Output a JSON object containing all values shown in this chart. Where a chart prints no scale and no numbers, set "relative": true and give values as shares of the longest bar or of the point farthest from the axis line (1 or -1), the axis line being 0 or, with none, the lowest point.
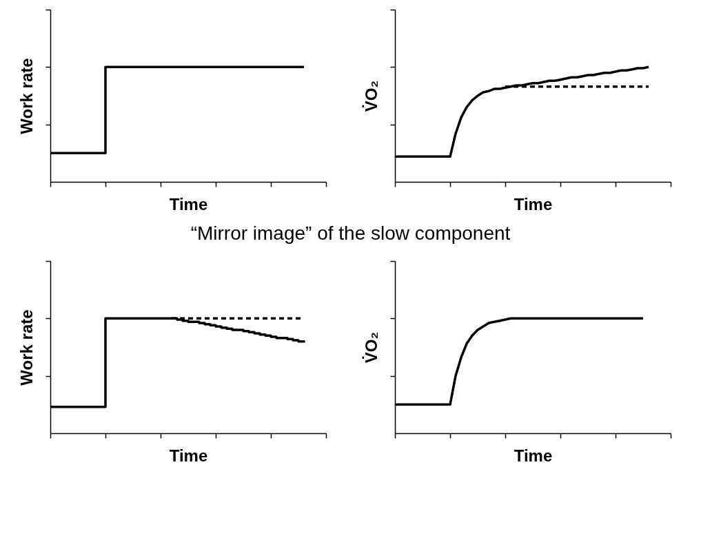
{
  "chart_data": [
    {
      "type": "step",
      "relative": true,
      "xlabel": "Time",
      "ylabel": "Work rate",
      "categories": [
        null,
        null,
        null,
        null,
        null,
        null,
        null,
        null,
        null,
        null,
        null,
        null,
        null,
        null,
        null,
        null,
        null,
        null,
        null,
        null,
        null,
        null,
        null,
        null,
        null,
        null,
        null,
        null,
        null,
        null,
        null,
        null,
        null,
        null,
        null,
        null,
        null,
        null,
        null,
        null,
        null,
        null,
        null,
        null,
        null,
        null,
        null,
        null,
        null,
        null,
        null
      ],
      "series": [
        {
          "color": "#000000",
          "values": [
            0.25,
            0.25,
            0.25,
            0.25,
            0.25,
            0.25,
            0.25,
            0.25,
            0.25,
            0.25,
            1,
            1,
            1,
            1,
            1,
            1,
            1,
            1,
            1,
            1,
            1,
            1,
            1,
            1,
            1,
            1,
            1,
            1,
            1,
            1,
            1,
            1,
            1,
            1,
            1,
            1,
            1,
            1,
            1,
            1,
            1,
            1,
            1,
            1,
            1,
            1,
            1,
            null,
            null,
            null,
            null
          ]
        }
      ]
    },
    {
      "type": "line",
      "relative": true,
      "xlabel": "Time",
      "ylabel": "V̇O₂",
      "categories": [
        null,
        null,
        null,
        null,
        null,
        null,
        null,
        null,
        null,
        null,
        null,
        null,
        null,
        null,
        null,
        null,
        null,
        null,
        null,
        null,
        null,
        null,
        null,
        null,
        null,
        null,
        null,
        null,
        null,
        null,
        null,
        null,
        null,
        null,
        null,
        null,
        null,
        null,
        null,
        null,
        null,
        null,
        null,
        null,
        null,
        null,
        null,
        null,
        null,
        null,
        null
      ],
      "series": [
        {
          "color": "#000000",
          "values": [
            0.22,
            0.22,
            0.22,
            0.22,
            0.22,
            0.22,
            0.22,
            0.22,
            0.22,
            0.22,
            0.22,
            0.42,
            0.56,
            0.65,
            0.71,
            0.75,
            0.78,
            0.79,
            0.81,
            0.81,
            0.82,
            0.83,
            0.84,
            0.84,
            0.85,
            0.86,
            0.86,
            0.87,
            0.88,
            0.88,
            0.89,
            0.9,
            0.91,
            0.91,
            0.92,
            0.93,
            0.93,
            0.94,
            0.95,
            0.95,
            0.96,
            0.97,
            0.97,
            0.98,
            0.99,
            0.99,
            1.0,
            null,
            null,
            null,
            null
          ]
        },
        {
          "color": "#000000",
          "line_style": "dashed",
          "values": [
            null,
            null,
            null,
            null,
            null,
            null,
            null,
            null,
            null,
            null,
            null,
            null,
            null,
            null,
            null,
            null,
            null,
            null,
            null,
            null,
            0.83,
            0.83,
            0.83,
            0.83,
            0.83,
            0.83,
            0.83,
            0.83,
            0.83,
            0.83,
            0.83,
            0.83,
            0.83,
            0.83,
            0.83,
            0.83,
            0.83,
            0.83,
            0.83,
            0.83,
            0.83,
            0.83,
            0.83,
            0.83,
            0.83,
            0.83,
            0.83,
            null,
            null,
            null,
            null
          ]
        }
      ]
    },
    {
      "type": "line",
      "relative": true,
      "title": "“Mirror image” of the slow component",
      "xlabel": "Time",
      "ylabel": "Work rate",
      "categories": [
        null,
        null,
        null,
        null,
        null,
        null,
        null,
        null,
        null,
        null,
        null,
        null,
        null,
        null,
        null,
        null,
        null,
        null,
        null,
        null,
        null,
        null,
        null,
        null,
        null,
        null,
        null,
        null,
        null,
        null,
        null,
        null,
        null,
        null,
        null,
        null,
        null,
        null,
        null,
        null,
        null,
        null,
        null,
        null,
        null,
        null,
        null,
        null,
        null,
        null,
        null
      ],
      "series": [
        {
          "type": "step",
          "color": "#000000",
          "values": [
            0.23,
            0.23,
            0.23,
            0.23,
            0.23,
            0.23,
            0.23,
            0.23,
            0.23,
            0.23,
            1,
            1,
            1,
            1,
            1,
            1,
            1,
            1,
            1,
            1,
            1,
            1,
            1.0,
            0.99,
            0.98,
            0.97,
            0.97,
            0.96,
            0.95,
            0.94,
            0.93,
            0.92,
            0.91,
            0.9,
            0.9,
            0.89,
            0.88,
            0.87,
            0.86,
            0.85,
            0.84,
            0.83,
            0.83,
            0.82,
            0.81,
            0.8,
            0.79,
            null,
            null,
            null,
            null
          ]
        },
        {
          "color": "#000000",
          "line_style": "dashed",
          "values": [
            null,
            null,
            null,
            null,
            null,
            null,
            null,
            null,
            null,
            null,
            null,
            null,
            null,
            null,
            null,
            null,
            null,
            null,
            null,
            null,
            null,
            null,
            1,
            1,
            1,
            1,
            1,
            1,
            1,
            1,
            1,
            1,
            1,
            1,
            1,
            1,
            1,
            1,
            1,
            1,
            1,
            1,
            1,
            1,
            1,
            1,
            1,
            null,
            null,
            null,
            null
          ]
        }
      ]
    },
    {
      "type": "line",
      "relative": true,
      "xlabel": "Time",
      "ylabel": "V̇O₂",
      "categories": [
        null,
        null,
        null,
        null,
        null,
        null,
        null,
        null,
        null,
        null,
        null,
        null,
        null,
        null,
        null,
        null,
        null,
        null,
        null,
        null,
        null,
        null,
        null,
        null,
        null,
        null,
        null,
        null,
        null,
        null,
        null,
        null,
        null,
        null,
        null,
        null,
        null,
        null,
        null,
        null,
        null,
        null,
        null,
        null,
        null,
        null,
        null,
        null,
        null,
        null,
        null
      ],
      "series": [
        {
          "color": "#000000",
          "values": [
            0.25,
            0.25,
            0.25,
            0.25,
            0.25,
            0.25,
            0.25,
            0.25,
            0.25,
            0.25,
            0.25,
            0.5,
            0.66,
            0.78,
            0.85,
            0.9,
            0.93,
            0.96,
            0.97,
            0.98,
            0.99,
            1,
            1,
            1,
            1,
            1,
            1,
            1,
            1,
            1,
            1,
            1,
            1,
            1,
            1,
            1,
            1,
            1,
            1,
            1,
            1,
            1,
            1,
            1,
            1,
            1,
            null,
            null,
            null,
            null,
            null
          ]
        }
      ]
    }
  ]
}
